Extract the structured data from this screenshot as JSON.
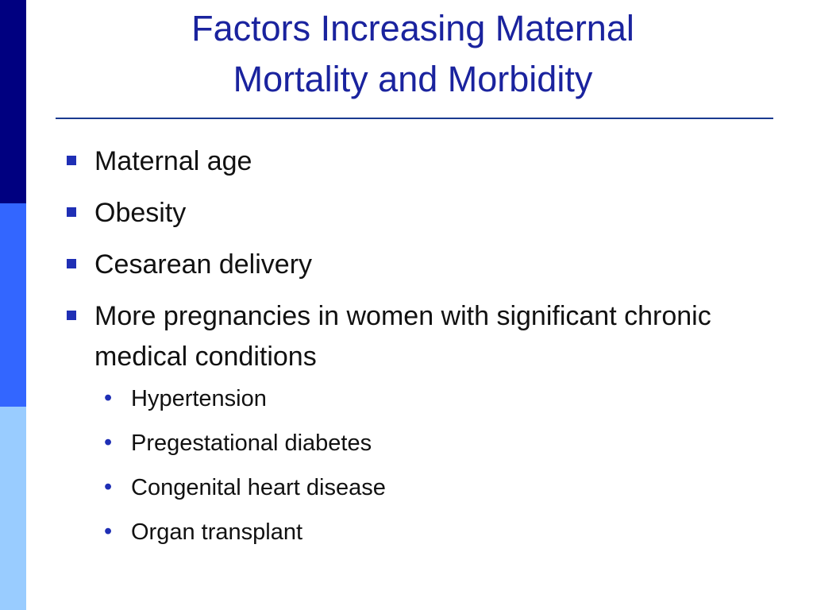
{
  "slide": {
    "title_line1": "Factors Increasing Maternal",
    "title_line2": "Mortality and Morbidity",
    "bullets": [
      "Maternal age",
      "Obesity",
      "Cesarean delivery",
      "More pregnancies in women with significant chronic medical conditions"
    ],
    "sub_bullets": [
      "Hypertension",
      "Pregestational diabetes",
      "Congenital heart disease",
      "Organ transplant"
    ],
    "colors": {
      "title": "#1a239e",
      "bar_dark": "#000080",
      "bar_mid": "#3366ff",
      "bar_light": "#99ccff",
      "bullet_marker": "#1f2fb5"
    },
    "icons": {
      "main_marker": "square-bullet-icon",
      "sub_marker": "round-bullet-icon"
    }
  }
}
